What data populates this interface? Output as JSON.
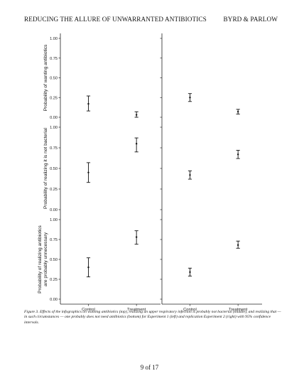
{
  "header": {
    "left": "REDUCING THE ALLURE OF UNWARRANTED ANTIBIOTICS",
    "right": "BYRD & PARLOW"
  },
  "caption": "Figure 3. Effects of the infographics on wanting antibiotics (top), realizing an upper respiratory infection is probably not bacterial (middle), and realizing that — in such circumstances — one probably does not need antibiotics (bottom) for Experiment 1 (left) and replication Experiment 2 (right) with 95% confidence intervals.",
  "page_number": "9 of 17",
  "chart_data": {
    "type": "scatter",
    "categories": [
      "Control",
      "Treatment"
    ],
    "ylim": [
      0,
      1
    ],
    "y_ticks": [
      "0.00",
      "0.25",
      "0.50",
      "0.75",
      "1.00"
    ],
    "columns": [
      "Experiment 1",
      "Experiment 2"
    ],
    "rows": [
      {
        "ylabel": [
          "Probability of wanting antibiotics"
        ],
        "panels": [
          {
            "points": [
              {
                "x": "Control",
                "y": 0.17,
                "lo": 0.08,
                "hi": 0.27
              },
              {
                "x": "Treatment",
                "y": 0.03,
                "lo": 0.0,
                "hi": 0.07
              }
            ]
          },
          {
            "points": [
              {
                "x": "Control",
                "y": 0.25,
                "lo": 0.2,
                "hi": 0.3
              },
              {
                "x": "Treatment",
                "y": 0.07,
                "lo": 0.04,
                "hi": 0.1
              }
            ]
          }
        ]
      },
      {
        "ylabel": [
          "Probability of realizing it is not bacterial"
        ],
        "panels": [
          {
            "points": [
              {
                "x": "Control",
                "y": 0.45,
                "lo": 0.33,
                "hi": 0.57
              },
              {
                "x": "Treatment",
                "y": 0.8,
                "lo": 0.7,
                "hi": 0.87
              }
            ]
          },
          {
            "points": [
              {
                "x": "Control",
                "y": 0.42,
                "lo": 0.37,
                "hi": 0.47
              },
              {
                "x": "Treatment",
                "y": 0.67,
                "lo": 0.62,
                "hi": 0.72
              }
            ]
          }
        ]
      },
      {
        "ylabel": [
          "Probability of realizing antibiotics",
          "are probably unnecessary"
        ],
        "panels": [
          {
            "points": [
              {
                "x": "Control",
                "y": 0.4,
                "lo": 0.28,
                "hi": 0.52
              },
              {
                "x": "Treatment",
                "y": 0.78,
                "lo": 0.69,
                "hi": 0.86
              }
            ]
          },
          {
            "points": [
              {
                "x": "Control",
                "y": 0.34,
                "lo": 0.29,
                "hi": 0.39
              },
              {
                "x": "Treatment",
                "y": 0.68,
                "lo": 0.64,
                "hi": 0.73
              }
            ]
          }
        ]
      }
    ]
  }
}
